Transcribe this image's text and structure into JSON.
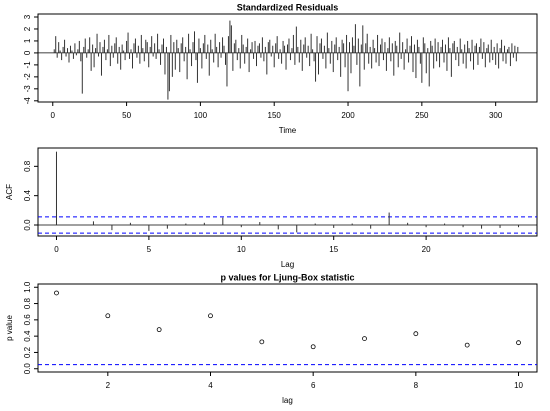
{
  "chart_data": [
    {
      "type": "stem",
      "title": "Standardized Residuals",
      "xlabel": "Time",
      "color": "#333333",
      "x": [
        1,
        2,
        3,
        4,
        5,
        6,
        7,
        8,
        9,
        10,
        11,
        12,
        13,
        14,
        15,
        16,
        17,
        18,
        19,
        20,
        21,
        22,
        23,
        24,
        25,
        26,
        27,
        28,
        29,
        30,
        31,
        32,
        33,
        34,
        35,
        36,
        37,
        38,
        39,
        40,
        41,
        42,
        43,
        44,
        45,
        46,
        47,
        48,
        49,
        50,
        51,
        52,
        53,
        54,
        55,
        56,
        57,
        58,
        59,
        60,
        61,
        62,
        63,
        64,
        65,
        66,
        67,
        68,
        69,
        70,
        71,
        72,
        73,
        74,
        75,
        76,
        77,
        78,
        79,
        80,
        81,
        82,
        83,
        84,
        85,
        86,
        87,
        88,
        89,
        90,
        91,
        92,
        93,
        94,
        95,
        96,
        97,
        98,
        99,
        100,
        101,
        102,
        103,
        104,
        105,
        106,
        107,
        108,
        109,
        110,
        111,
        112,
        113,
        114,
        115,
        116,
        117,
        118,
        119,
        120,
        121,
        122,
        123,
        124,
        125,
        126,
        127,
        128,
        129,
        130,
        131,
        132,
        133,
        134,
        135,
        136,
        137,
        138,
        139,
        140,
        141,
        142,
        143,
        144,
        145,
        146,
        147,
        148,
        149,
        150,
        151,
        152,
        153,
        154,
        155,
        156,
        157,
        158,
        159,
        160,
        161,
        162,
        163,
        164,
        165,
        166,
        167,
        168,
        169,
        170,
        171,
        172,
        173,
        174,
        175,
        176,
        177,
        178,
        179,
        180,
        181,
        182,
        183,
        184,
        185,
        186,
        187,
        188,
        189,
        190,
        191,
        192,
        193,
        194,
        195,
        196,
        197,
        198,
        199,
        200,
        201,
        202,
        203,
        204,
        205,
        206,
        207,
        208,
        209,
        210,
        211,
        212,
        213,
        214,
        215,
        216,
        217,
        218,
        219,
        220,
        221,
        222,
        223,
        224,
        225,
        226,
        227,
        228,
        229,
        230,
        231,
        232,
        233,
        234,
        235,
        236,
        237,
        238,
        239,
        240,
        241,
        242,
        243,
        244,
        245,
        246,
        247,
        248,
        249,
        250,
        251,
        252,
        253,
        254,
        255,
        256,
        257,
        258,
        259,
        260,
        261,
        262,
        263,
        264,
        265,
        266,
        267,
        268,
        269,
        270,
        271,
        272,
        273,
        274,
        275,
        276,
        277,
        278,
        279,
        280,
        281,
        282,
        283,
        284,
        285,
        286,
        287,
        288,
        289,
        290,
        291,
        292,
        293,
        294,
        295,
        296,
        297,
        298,
        299,
        300,
        301,
        302,
        303,
        304,
        305,
        306,
        307,
        308,
        309,
        310,
        311,
        312,
        313,
        314,
        315
      ],
      "values": [
        0.3,
        1.4,
        -0.4,
        0.9,
        0.2,
        -0.6,
        0.5,
        1.1,
        -0.3,
        0.4,
        -0.8,
        0.6,
        0.2,
        -0.5,
        0.8,
        -0.2,
        0.3,
        1.0,
        -0.7,
        -3.4,
        0.5,
        1.2,
        -0.4,
        0.3,
        1.3,
        -1.5,
        0.7,
        -1.2,
        0.4,
        1.6,
        -0.3,
        0.9,
        -1.9,
        0.5,
        1.1,
        -0.6,
        0.3,
        1.5,
        -1.1,
        0.6,
        -0.4,
        0.8,
        1.3,
        -0.9,
        0.5,
        -1.4,
        0.7,
        0.2,
        -0.6,
        1.0,
        1.7,
        -0.5,
        0.3,
        -1.3,
        0.8,
        1.2,
        -0.4,
        0.6,
        -0.9,
        1.5,
        0.4,
        -0.7,
        1.1,
        0.9,
        -1.2,
        0.5,
        1.4,
        -0.3,
        0.8,
        -0.5,
        1.6,
        0.3,
        -1.0,
        0.7,
        1.2,
        -1.8,
        0.5,
        -3.9,
        -3.2,
        1.5,
        -2.0,
        0.9,
        -1.4,
        1.1,
        0.4,
        -1.6,
        0.8,
        1.3,
        -0.7,
        0.5,
        -2.2,
        1.6,
        0.3,
        -1.1,
        0.9,
        1.8,
        -0.6,
        -2.5,
        1.2,
        0.4,
        -1.3,
        0.8,
        1.5,
        -0.5,
        0.7,
        -1.9,
        1.1,
        0.3,
        -0.8,
        1.6,
        0.5,
        -1.2,
        0.9,
        -0.4,
        1.3,
        0.6,
        -1.0,
        -2.8,
        1.4,
        2.7,
        2.3,
        -1.5,
        0.8,
        1.1,
        -0.6,
        0.4,
        -1.3,
        1.5,
        0.7,
        -0.9,
        0.5,
        1.2,
        -1.6,
        0.3,
        0.9,
        -0.5,
        1.0,
        -1.1,
        0.6,
        0.8,
        -0.4,
        1.3,
        -0.7,
        0.5,
        -1.8,
        0.9,
        1.1,
        -0.3,
        0.6,
        -1.2,
        0.8,
        1.4,
        -0.5,
        0.3,
        -0.9,
        1.0,
        0.6,
        -1.4,
        0.7,
        1.2,
        -0.6,
        0.4,
        1.5,
        -1.0,
        2.2,
        0.5,
        -0.8,
        1.1,
        -1.5,
        0.7,
        1.3,
        -0.4,
        0.6,
        -1.1,
        1.6,
        0.3,
        -0.7,
        -2.4,
        1.4,
        -1.8,
        0.8,
        1.2,
        -0.5,
        0.6,
        -1.3,
        1.7,
        0.4,
        -0.9,
        1.0,
        -1.6,
        0.7,
        1.3,
        -0.6,
        0.5,
        -2.0,
        1.1,
        0.8,
        -1.2,
        1.5,
        -3.2,
        0.9,
        -1.7,
        1.3,
        0.6,
        2.4,
        -1.0,
        1.2,
        -2.8,
        0.7,
        2.3,
        -1.4,
        0.8,
        1.6,
        -0.9,
        0.5,
        -1.3,
        1.1,
        0.4,
        -0.8,
        1.5,
        -1.1,
        0.7,
        1.2,
        -0.6,
        0.9,
        -1.5,
        0.4,
        1.3,
        -0.7,
        0.8,
        -1.9,
        1.0,
        0.6,
        -1.2,
        1.7,
        -0.5,
        0.9,
        -1.4,
        0.3,
        1.2,
        -0.8,
        0.6,
        1.4,
        -1.6,
        0.7,
        -2.1,
        1.1,
        0.5,
        -0.9,
        -2.5,
        1.3,
        0.8,
        -1.7,
        0.4,
        -2.8,
        1.0,
        0.6,
        -1.3,
        1.2,
        -0.7,
        0.9,
        -1.2,
        0.5,
        1.1,
        -0.8,
        0.7,
        -1.5,
        1.3,
        0.4,
        -2.0,
        0.8,
        1.0,
        -0.6,
        0.5,
        -1.1,
        1.2,
        0.3,
        -0.9,
        0.7,
        -1.3,
        1.0,
        0.4,
        -0.7,
        1.1,
        -1.4,
        0.6,
        0.8,
        -1.0,
        0.5,
        1.2,
        -0.5,
        0.9,
        -1.2,
        0.4,
        0.7,
        -0.8,
        1.1,
        -0.6,
        0.5,
        -1.0,
        0.8,
        -1.3,
        0.4,
        1.1,
        -0.7,
        0.6,
        -0.9,
        0.3,
        0.5,
        -1.1,
        0.8,
        -0.4,
        0.6,
        -0.7,
        0.5
      ],
      "xlim": [
        -10,
        328
      ],
      "xticks": [
        0,
        50,
        100,
        150,
        200,
        250,
        300
      ],
      "ylim": [
        -4.1,
        3.25
      ],
      "yticks": [
        -4,
        -3,
        -2,
        -1,
        0,
        1,
        2,
        3
      ],
      "hlines": [
        0
      ]
    },
    {
      "type": "stem",
      "xlabel": "Lag",
      "ylabel": "ACF",
      "color": "#333333",
      "x": [
        0,
        1,
        2,
        3,
        4,
        5,
        6,
        7,
        8,
        9,
        10,
        11,
        12,
        13,
        14,
        15,
        16,
        17,
        18,
        19,
        20,
        21,
        22,
        23,
        24,
        25
      ],
      "values": [
        1.0,
        0.0,
        0.05,
        -0.07,
        0.03,
        -0.08,
        -0.05,
        0.02,
        0.03,
        0.1,
        -0.03,
        0.04,
        -0.06,
        -0.1,
        0.02,
        -0.04,
        0.02,
        -0.05,
        0.17,
        0.03,
        -0.03,
        0.02,
        -0.03,
        -0.05,
        -0.04,
        -0.03
      ],
      "xlim": [
        -1,
        26
      ],
      "xticks": [
        0,
        5,
        10,
        15,
        20
      ],
      "ylim": [
        -0.15,
        1.05
      ],
      "yticks": [
        {
          "value": 0,
          "label": "0.0"
        },
        {
          "value": 0.4,
          "label": "0.4"
        },
        {
          "value": 0.8,
          "label": "0.8"
        }
      ],
      "hlines": [
        0
      ],
      "ci_lines": [
        0.11,
        -0.11
      ],
      "ci_color": "#0000ff"
    },
    {
      "type": "scatter",
      "title": "p values for Ljung-Box statistic",
      "xlabel": "lag",
      "ylabel": "p value",
      "color": "#000000",
      "x": [
        1,
        2,
        3,
        4,
        5,
        6,
        7,
        8,
        9,
        10
      ],
      "values": [
        0.93,
        0.65,
        0.48,
        0.65,
        0.33,
        0.27,
        0.37,
        0.43,
        0.29,
        0.32
      ],
      "xlim": [
        0.64,
        10.36
      ],
      "xticks": [
        2,
        4,
        6,
        8,
        10
      ],
      "ylim": [
        -0.04,
        1.04
      ],
      "yticks": [
        {
          "value": 0,
          "label": "0.0"
        },
        {
          "value": 0.2,
          "label": "0.2"
        },
        {
          "value": 0.4,
          "label": "0.4"
        },
        {
          "value": 0.6,
          "label": "0.6"
        },
        {
          "value": 0.8,
          "label": "0.8"
        },
        {
          "value": 1,
          "label": "1.0"
        }
      ],
      "ci_lines": [
        0.05
      ],
      "ci_color": "#0000ff"
    }
  ]
}
